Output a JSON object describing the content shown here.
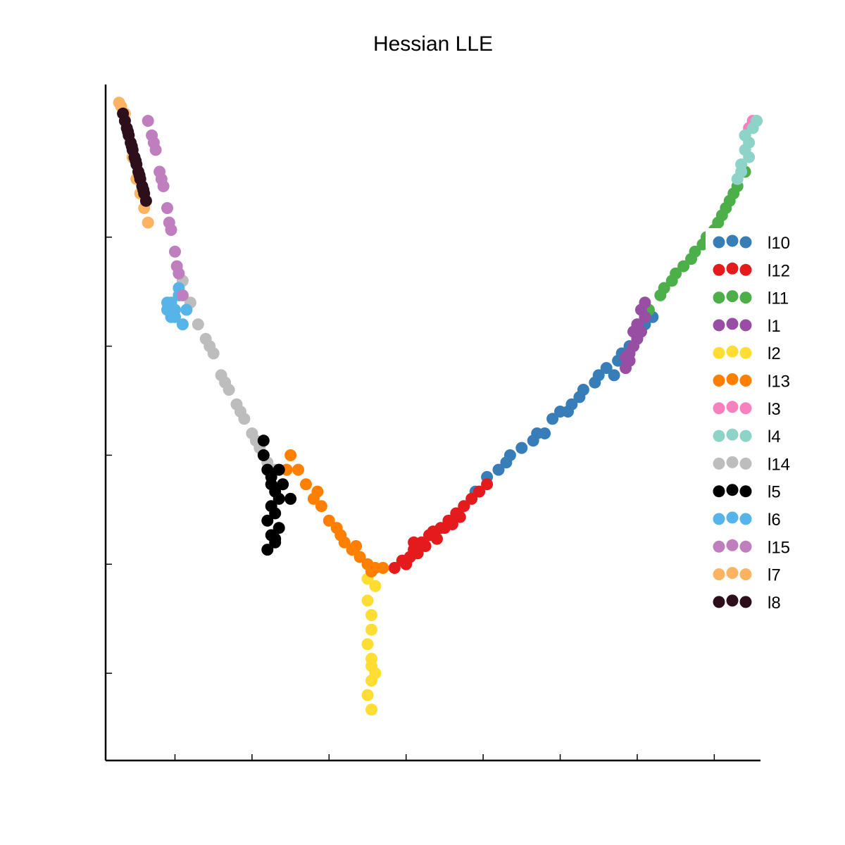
{
  "chart_data": {
    "type": "scatter",
    "title": "Hessian LLE",
    "xlabel": "",
    "ylabel": "",
    "xlim": [
      -0.78,
      0.92
    ],
    "ylim": [
      -0.42,
      0.51
    ],
    "x_ticks": [
      -0.6,
      -0.4,
      -0.2,
      0.0,
      0.2,
      0.4,
      0.6,
      0.8
    ],
    "y_ticks": [
      -0.3,
      -0.15,
      0.0,
      0.15,
      0.3
    ],
    "tick_labels_visible": false,
    "grid": false,
    "legend": "right",
    "series": [
      {
        "name": "l10",
        "color": "#377eb8",
        "x": [
          0.18,
          0.24,
          0.3,
          0.36,
          0.4,
          0.46,
          0.52,
          0.56,
          0.58,
          0.62,
          0.64,
          0.21,
          0.27,
          0.33,
          0.43,
          0.49,
          0.55,
          0.6,
          0.54,
          0.45,
          0.38,
          0.26,
          0.5,
          0.58,
          0.61,
          0.34,
          0.42
        ],
        "y": [
          -0.05,
          -0.02,
          0.01,
          0.03,
          0.06,
          0.09,
          0.12,
          0.14,
          0.15,
          0.18,
          0.19,
          -0.03,
          0.0,
          0.02,
          0.07,
          0.1,
          0.13,
          0.16,
          0.11,
          0.08,
          0.05,
          -0.01,
          0.11,
          0.13,
          0.17,
          0.03,
          0.06
        ]
      },
      {
        "name": "l12",
        "color": "#e41a1c",
        "x": [
          -0.03,
          -0.01,
          0.01,
          0.02,
          0.04,
          0.06,
          0.09,
          0.11,
          0.13,
          0.15,
          0.17,
          0.21,
          0.0,
          0.03,
          0.05,
          0.08,
          0.12,
          0.14,
          0.19,
          0.02,
          0.07,
          0.1
        ],
        "y": [
          -0.155,
          -0.145,
          -0.14,
          -0.13,
          -0.12,
          -0.11,
          -0.1,
          -0.09,
          -0.08,
          -0.07,
          -0.06,
          -0.04,
          -0.15,
          -0.135,
          -0.125,
          -0.115,
          -0.095,
          -0.085,
          -0.05,
          -0.12,
          -0.105,
          -0.1
        ]
      },
      {
        "name": "l11",
        "color": "#4daf4a",
        "x": [
          0.63,
          0.66,
          0.69,
          0.72,
          0.75,
          0.78,
          0.8,
          0.82,
          0.84,
          0.86,
          0.88,
          0.7,
          0.74,
          0.77,
          0.81,
          0.85,
          0.67,
          0.79,
          0.83
        ],
        "y": [
          0.2,
          0.22,
          0.24,
          0.26,
          0.28,
          0.3,
          0.31,
          0.33,
          0.35,
          0.37,
          0.39,
          0.25,
          0.27,
          0.29,
          0.32,
          0.36,
          0.23,
          0.3,
          0.34
        ]
      },
      {
        "name": "l1",
        "color": "#984ea3",
        "x": [
          0.57,
          0.58,
          0.59,
          0.6,
          0.61,
          0.62,
          0.58,
          0.6,
          0.59,
          0.61,
          0.57,
          0.62
        ],
        "y": [
          0.12,
          0.13,
          0.15,
          0.16,
          0.17,
          0.19,
          0.14,
          0.18,
          0.17,
          0.2,
          0.135,
          0.21
        ]
      },
      {
        "name": "l2",
        "color": "#ffdd33",
        "x": [
          -0.1,
          -0.1,
          -0.09,
          -0.09,
          -0.1,
          -0.09,
          -0.08,
          -0.09,
          -0.1,
          -0.09,
          -0.09,
          -0.08
        ],
        "y": [
          -0.17,
          -0.2,
          -0.22,
          -0.24,
          -0.26,
          -0.28,
          -0.3,
          -0.31,
          -0.33,
          -0.35,
          -0.29,
          -0.18
        ]
      },
      {
        "name": "l13",
        "color": "#ff7f00",
        "x": [
          -0.3,
          -0.28,
          -0.26,
          -0.24,
          -0.22,
          -0.2,
          -0.18,
          -0.16,
          -0.14,
          -0.12,
          -0.1,
          -0.08,
          -0.09,
          -0.17,
          -0.23,
          -0.13,
          -0.06,
          -0.31
        ],
        "y": [
          0.0,
          -0.02,
          -0.04,
          -0.06,
          -0.07,
          -0.09,
          -0.1,
          -0.12,
          -0.13,
          -0.14,
          -0.15,
          -0.155,
          -0.16,
          -0.11,
          -0.05,
          -0.125,
          -0.155,
          -0.02
        ]
      },
      {
        "name": "l3",
        "color": "#f781bf",
        "x": [
          0.89,
          0.9,
          0.91,
          0.88
        ],
        "y": [
          0.45,
          0.46,
          0.46,
          0.44
        ]
      },
      {
        "name": "l4",
        "color": "#8dd3c7",
        "x": [
          0.86,
          0.87,
          0.88,
          0.89,
          0.9,
          0.87,
          0.89,
          0.91,
          0.88
        ],
        "y": [
          0.38,
          0.4,
          0.42,
          0.43,
          0.45,
          0.39,
          0.41,
          0.46,
          0.44
        ]
      },
      {
        "name": "l14",
        "color": "#bdbdbd",
        "x": [
          -0.58,
          -0.56,
          -0.54,
          -0.52,
          -0.5,
          -0.48,
          -0.46,
          -0.44,
          -0.42,
          -0.4,
          -0.38,
          -0.36,
          -0.34,
          -0.32,
          -0.47,
          -0.51,
          -0.43,
          -0.39,
          -0.37
        ],
        "y": [
          0.24,
          0.21,
          0.18,
          0.16,
          0.14,
          0.11,
          0.09,
          0.07,
          0.05,
          0.03,
          0.01,
          -0.01,
          -0.02,
          -0.04,
          0.1,
          0.15,
          0.06,
          0.02,
          0.0
        ]
      },
      {
        "name": "l5",
        "color": "#000000",
        "x": [
          -0.37,
          -0.36,
          -0.35,
          -0.34,
          -0.33,
          -0.35,
          -0.34,
          -0.36,
          -0.33,
          -0.35,
          -0.34,
          -0.36,
          -0.32,
          -0.3,
          -0.33,
          -0.35,
          -0.34,
          -0.37
        ],
        "y": [
          0.0,
          -0.02,
          -0.03,
          -0.05,
          -0.06,
          -0.07,
          -0.08,
          -0.09,
          -0.1,
          -0.11,
          -0.12,
          -0.13,
          -0.04,
          -0.06,
          -0.02,
          -0.04,
          -0.115,
          0.02
        ]
      },
      {
        "name": "l6",
        "color": "#56b4e9",
        "x": [
          -0.62,
          -0.61,
          -0.6,
          -0.59,
          -0.58,
          -0.6,
          -0.61,
          -0.59,
          -0.57,
          -0.62
        ],
        "y": [
          0.2,
          0.21,
          0.19,
          0.22,
          0.18,
          0.2,
          0.19,
          0.23,
          0.2,
          0.21
        ]
      },
      {
        "name": "l15",
        "color": "#bf7fbf",
        "x": [
          -0.67,
          -0.66,
          -0.65,
          -0.64,
          -0.63,
          -0.62,
          -0.61,
          -0.6,
          -0.59,
          -0.58,
          -0.655,
          -0.635,
          -0.615,
          -0.595
        ],
        "y": [
          0.46,
          0.44,
          0.42,
          0.39,
          0.37,
          0.34,
          0.31,
          0.28,
          0.25,
          0.22,
          0.43,
          0.38,
          0.32,
          0.26
        ]
      },
      {
        "name": "l7",
        "color": "#fdb462",
        "x": [
          -0.745,
          -0.74,
          -0.73,
          -0.72,
          -0.71,
          -0.7,
          -0.69,
          -0.68,
          -0.67
        ],
        "y": [
          0.485,
          0.48,
          0.47,
          0.44,
          0.41,
          0.38,
          0.36,
          0.34,
          0.32
        ]
      },
      {
        "name": "l8",
        "color": "#2d0f1c",
        "x": [
          -0.735,
          -0.73,
          -0.725,
          -0.72,
          -0.715,
          -0.71,
          -0.705,
          -0.7,
          -0.695,
          -0.69,
          -0.685,
          -0.68,
          -0.675,
          -0.722,
          -0.712,
          -0.702,
          -0.692,
          -0.682
        ],
        "y": [
          0.47,
          0.46,
          0.45,
          0.44,
          0.43,
          0.42,
          0.41,
          0.4,
          0.39,
          0.38,
          0.37,
          0.36,
          0.35,
          0.445,
          0.425,
          0.405,
          0.385,
          0.365
        ]
      }
    ]
  }
}
